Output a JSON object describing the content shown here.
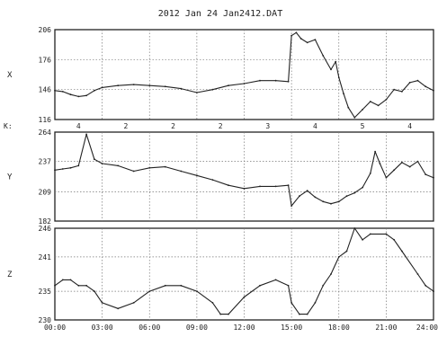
{
  "chart_data": {
    "type": "line",
    "title": "2012  Jan  24    Jan2412.DAT",
    "x": {
      "range": [
        0,
        24
      ],
      "ticks": [
        0,
        3,
        6,
        9,
        12,
        15,
        18,
        21,
        24
      ],
      "tick_labels": [
        "00:00",
        "03:00",
        "06:00",
        "09:00",
        "12:00",
        "15:00",
        "18:00",
        "21:00",
        "24:00"
      ]
    },
    "kp": {
      "label": "K:",
      "values": [
        {
          "hour": 1.5,
          "value": "4"
        },
        {
          "hour": 4.5,
          "value": "2"
        },
        {
          "hour": 7.5,
          "value": "2"
        },
        {
          "hour": 10.5,
          "value": "2"
        },
        {
          "hour": 13.5,
          "value": "3"
        },
        {
          "hour": 16.5,
          "value": "4"
        },
        {
          "hour": 19.5,
          "value": "5"
        },
        {
          "hour": 22.5,
          "value": "4"
        }
      ]
    },
    "panels": [
      {
        "name": "X",
        "ylim": [
          116,
          206
        ],
        "yticks": [
          116,
          146,
          176,
          206
        ],
        "points": [
          [
            0,
            145
          ],
          [
            0.5,
            144
          ],
          [
            1,
            141
          ],
          [
            1.5,
            139
          ],
          [
            2,
            140
          ],
          [
            2.5,
            145
          ],
          [
            3,
            148
          ],
          [
            4,
            150
          ],
          [
            5,
            151
          ],
          [
            6,
            150
          ],
          [
            7,
            149
          ],
          [
            8,
            147
          ],
          [
            9,
            143
          ],
          [
            10,
            146
          ],
          [
            11,
            150
          ],
          [
            12,
            152
          ],
          [
            13,
            155
          ],
          [
            14,
            155
          ],
          [
            14.8,
            154
          ],
          [
            15,
            200
          ],
          [
            15.3,
            203
          ],
          [
            15.6,
            197
          ],
          [
            16,
            193
          ],
          [
            16.5,
            196
          ],
          [
            17,
            180
          ],
          [
            17.5,
            166
          ],
          [
            17.8,
            174
          ],
          [
            18,
            158
          ],
          [
            18.3,
            142
          ],
          [
            18.6,
            128
          ],
          [
            19,
            118
          ],
          [
            19.5,
            126
          ],
          [
            20,
            134
          ],
          [
            20.5,
            130
          ],
          [
            21,
            136
          ],
          [
            21.5,
            146
          ],
          [
            22,
            144
          ],
          [
            22.5,
            153
          ],
          [
            23,
            155
          ],
          [
            23.5,
            149
          ],
          [
            24,
            145
          ]
        ]
      },
      {
        "name": "Y",
        "ylim": [
          182,
          264
        ],
        "yticks": [
          182,
          209,
          237,
          264
        ],
        "points": [
          [
            0,
            229
          ],
          [
            0.5,
            230
          ],
          [
            1,
            231
          ],
          [
            1.5,
            233
          ],
          [
            2,
            262
          ],
          [
            2.5,
            239
          ],
          [
            3,
            235
          ],
          [
            4,
            233
          ],
          [
            5,
            228
          ],
          [
            6,
            231
          ],
          [
            7,
            232
          ],
          [
            8,
            228
          ],
          [
            9,
            224
          ],
          [
            10,
            220
          ],
          [
            11,
            215
          ],
          [
            12,
            212
          ],
          [
            13,
            214
          ],
          [
            14,
            214
          ],
          [
            14.8,
            215
          ],
          [
            15,
            196
          ],
          [
            15.5,
            205
          ],
          [
            16,
            210
          ],
          [
            16.5,
            204
          ],
          [
            17,
            200
          ],
          [
            17.5,
            198
          ],
          [
            18,
            200
          ],
          [
            18.5,
            205
          ],
          [
            19,
            208
          ],
          [
            19.5,
            213
          ],
          [
            20,
            226
          ],
          [
            20.3,
            246
          ],
          [
            20.6,
            235
          ],
          [
            21,
            222
          ],
          [
            21.5,
            229
          ],
          [
            22,
            236
          ],
          [
            22.5,
            232
          ],
          [
            23,
            237
          ],
          [
            23.5,
            225
          ],
          [
            24,
            222
          ]
        ]
      },
      {
        "name": "Z",
        "ylim": [
          230,
          246
        ],
        "yticks": [
          230,
          235,
          241,
          246
        ],
        "points": [
          [
            0,
            236
          ],
          [
            0.5,
            237
          ],
          [
            1,
            237
          ],
          [
            1.5,
            236
          ],
          [
            2,
            236
          ],
          [
            2.5,
            235
          ],
          [
            3,
            233
          ],
          [
            4,
            232
          ],
          [
            5,
            233
          ],
          [
            6,
            235
          ],
          [
            7,
            236
          ],
          [
            8,
            236
          ],
          [
            9,
            235
          ],
          [
            10,
            233
          ],
          [
            10.5,
            231
          ],
          [
            11,
            231
          ],
          [
            12,
            234
          ],
          [
            13,
            236
          ],
          [
            14,
            237
          ],
          [
            14.8,
            236
          ],
          [
            15,
            233
          ],
          [
            15.5,
            231
          ],
          [
            16,
            231
          ],
          [
            16.5,
            233
          ],
          [
            17,
            236
          ],
          [
            17.5,
            238
          ],
          [
            18,
            241
          ],
          [
            18.5,
            242
          ],
          [
            19,
            246
          ],
          [
            19.5,
            244
          ],
          [
            20,
            245
          ],
          [
            21,
            245
          ],
          [
            21.5,
            244
          ],
          [
            22,
            242
          ],
          [
            23,
            238
          ],
          [
            23.5,
            236
          ],
          [
            24,
            235
          ]
        ]
      }
    ],
    "grid": true,
    "line_color": "#222222"
  }
}
